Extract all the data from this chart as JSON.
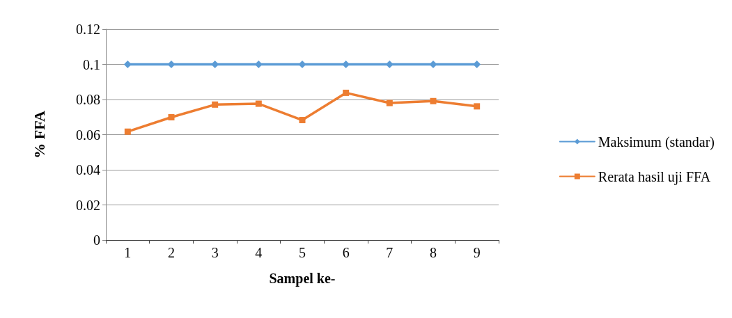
{
  "chart_data": {
    "type": "line",
    "xlabel": "Sampel ke-",
    "ylabel": "% FFA",
    "categories": [
      "1",
      "2",
      "3",
      "4",
      "5",
      "6",
      "7",
      "8",
      "9"
    ],
    "series": [
      {
        "name": "Maksimum (standar)",
        "color": "#5b9bd5",
        "marker": "diamond",
        "values": [
          0.1,
          0.1,
          0.1,
          0.1,
          0.1,
          0.1,
          0.1,
          0.1,
          0.1
        ]
      },
      {
        "name": "Rerata hasil uji FFA",
        "color": "#ed7d31",
        "marker": "square",
        "values": [
          0.0617,
          0.0699,
          0.0771,
          0.0776,
          0.0683,
          0.0838,
          0.078,
          0.0791,
          0.0761
        ]
      }
    ],
    "ylim": [
      0,
      0.12
    ],
    "yticks": [
      0,
      0.02,
      0.04,
      0.06,
      0.08,
      0.1,
      0.12
    ],
    "grid": "y",
    "legend": "right",
    "line_style": "solid"
  }
}
